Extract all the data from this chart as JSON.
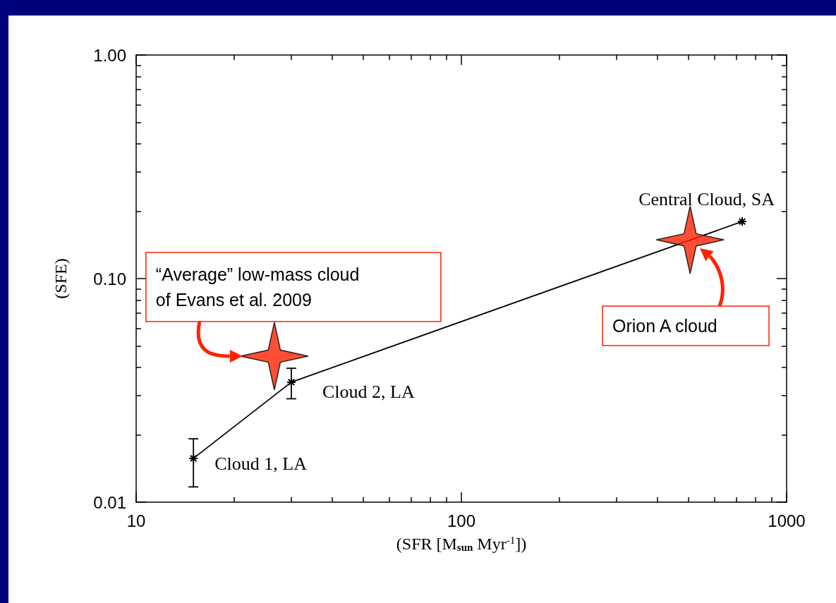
{
  "chart_data": {
    "type": "line",
    "xlabel": "(SFR [M$_{sun}$ Myr$^{-1}$])",
    "ylabel": "(SFE)",
    "log": "xy",
    "xlim": [
      10,
      1000
    ],
    "xticks": [
      10,
      100,
      1000
    ],
    "ylim": [
      0.01,
      1
    ],
    "yticks": [
      {
        "value": 0.01,
        "label": "0.01"
      },
      {
        "value": 0.1,
        "label": "0.10"
      },
      {
        "value": 1,
        "label": "1.00"
      }
    ],
    "grid": false,
    "series": [
      {
        "color": "#000000",
        "marker": "cross",
        "x": [
          15,
          30,
          730
        ],
        "values": [
          0.0157,
          0.0344,
          0.18
        ],
        "errors": [
          [
            0.0117,
            0.0192
          ],
          [
            0.029,
            0.0397
          ],
          null
        ]
      },
      {
        "type": "scatter",
        "color": "#ff2200",
        "marker": "star",
        "x": [
          26.6,
          505
        ],
        "values": [
          0.045,
          0.149
        ]
      }
    ],
    "annotations": [
      {
        "text": "Cloud 1, LA",
        "x": 15,
        "y": 0.0157
      },
      {
        "text": "Cloud 2, LA",
        "x": 30,
        "y": 0.0344
      },
      {
        "text": "Central Cloud, SA",
        "x": 730,
        "y": 0.18
      },
      {
        "text": "“Average” low-mass cloud\nof Evans et al. 2009",
        "x": 26.6,
        "y": 0.045
      },
      "Orion A cloud"
    ]
  }
}
